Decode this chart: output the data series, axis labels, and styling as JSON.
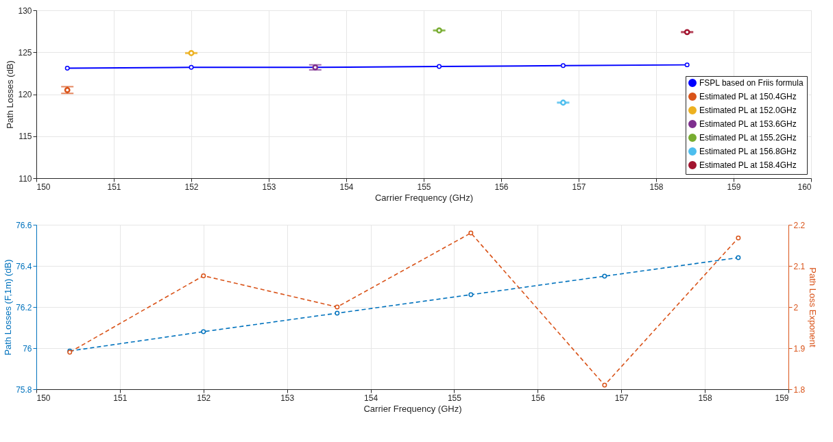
{
  "chart_data": [
    {
      "type": "scatter",
      "xlabel": "Carrier Frequency (GHz)",
      "ylabel": "Path Losses (dB)",
      "xlim": [
        150,
        160
      ],
      "xticks": [
        150,
        151,
        152,
        153,
        154,
        155,
        156,
        157,
        158,
        159,
        160
      ],
      "ylim": [
        110,
        130
      ],
      "yticks": [
        110,
        115,
        120,
        125,
        130
      ],
      "grid": true,
      "legend": "bottom right",
      "marker": "circle",
      "series": [
        {
          "name": "FSPL based on Friis formula",
          "type": "line",
          "color": "#0000ff",
          "x": [
            150.4,
            152.0,
            153.6,
            155.2,
            156.8,
            158.4
          ],
          "values": [
            123.1,
            123.2,
            123.2,
            123.3,
            123.4,
            123.5
          ]
        },
        {
          "name": "Estimated PL at 150.4GHz",
          "color": "#d95319",
          "x": [
            150.4
          ],
          "values": [
            120.5
          ],
          "errors": [
            0.4
          ]
        },
        {
          "name": "Estimated PL at 152.0GHz",
          "color": "#edb120",
          "x": [
            152.0
          ],
          "values": [
            124.9
          ],
          "errors": [
            0.05
          ]
        },
        {
          "name": "Estimated PL at 153.6GHz",
          "color": "#7e2f8e",
          "x": [
            153.6
          ],
          "values": [
            123.2
          ],
          "errors": [
            0.3
          ]
        },
        {
          "name": "Estimated PL at 155.2GHz",
          "color": "#77ac30",
          "x": [
            155.2
          ],
          "values": [
            127.6
          ],
          "errors": [
            0.05
          ]
        },
        {
          "name": "Estimated PL at 156.8GHz",
          "color": "#4dbeee",
          "x": [
            156.8
          ],
          "values": [
            119.0
          ],
          "errors": [
            0.05
          ]
        },
        {
          "name": "Estimated PL at 158.4GHz",
          "color": "#a2142f",
          "x": [
            158.4
          ],
          "values": [
            127.4
          ],
          "errors": [
            0.05
          ]
        }
      ]
    },
    {
      "type": "line",
      "xlabel": "Carrier Frequency (GHz)",
      "ylabel": "Path Losses (F,1m) (dB)",
      "y2label": "Path Loss Exponent",
      "xlim": [
        150,
        159
      ],
      "xticks": [
        150,
        151,
        152,
        153,
        154,
        155,
        156,
        157,
        158,
        159
      ],
      "ylim": [
        75.8,
        76.6
      ],
      "yticks": [
        75.8,
        76,
        76.2,
        76.4,
        76.6
      ],
      "y2lim": [
        1.8,
        2.2
      ],
      "y2ticks": [
        1.8,
        1.9,
        2,
        2.1,
        2.2
      ],
      "grid": true,
      "marker": "circle",
      "line_style": "dashed",
      "x": [
        150.4,
        152.0,
        153.6,
        155.2,
        156.8,
        158.4
      ],
      "series": [
        {
          "color": "#0072bd",
          "values": [
            75.986,
            76.08,
            76.17,
            76.26,
            76.35,
            76.44
          ]
        },
        {
          "color": "#d95319",
          "axis": "y2",
          "values": [
            1.89,
            2.076,
            2.0,
            2.18,
            1.81,
            2.168
          ]
        }
      ]
    }
  ]
}
